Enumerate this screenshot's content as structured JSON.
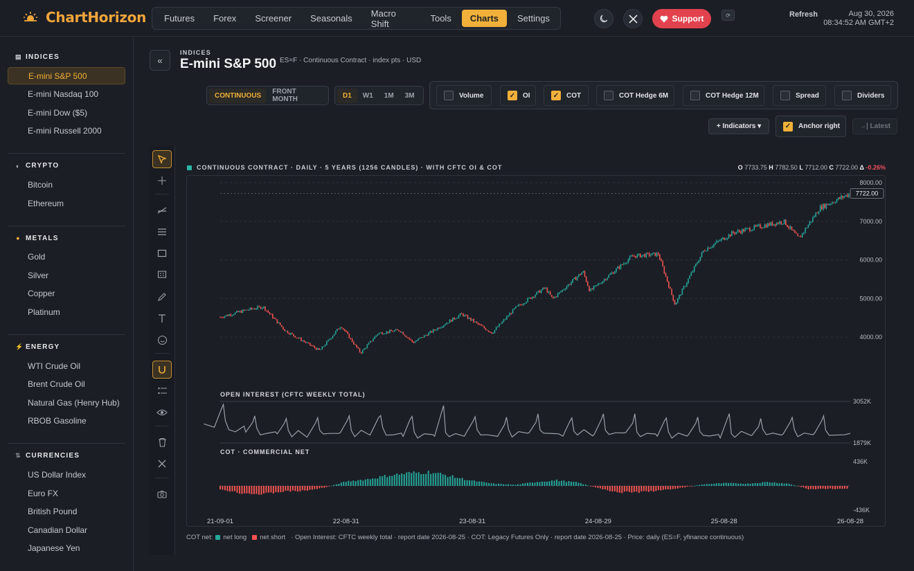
{
  "app": {
    "name": "ChartHorizon"
  },
  "nav": {
    "items": [
      "Futures",
      "Forex",
      "Screener",
      "Seasonals",
      "Macro Shift",
      "Tools",
      "Charts",
      "Settings"
    ],
    "active": "Charts"
  },
  "topbar": {
    "support_label": "Support",
    "refresh_label": "Refresh",
    "date": "Aug 30, 2026",
    "time": "08:34:52 AM GMT+2",
    "mini_glyph": "⟳"
  },
  "sidebar": {
    "sections": [
      {
        "title": "INDICES",
        "icon": "chart-icon",
        "items": [
          "E-mini S&P 500",
          "E-mini Nasdaq 100",
          "E-mini Dow ($5)",
          "E-mini Russell 2000"
        ],
        "active": "E-mini S&P 500"
      },
      {
        "title": "CRYPTO",
        "icon": "crypto-icon",
        "items": [
          "Bitcoin",
          "Ethereum"
        ]
      },
      {
        "title": "METALS",
        "icon": "metals-icon",
        "items": [
          "Gold",
          "Silver",
          "Copper",
          "Platinum"
        ]
      },
      {
        "title": "ENERGY",
        "icon": "energy-icon",
        "items": [
          "WTI Crude Oil",
          "Brent Crude Oil",
          "Natural Gas (Henry Hub)",
          "RBOB Gasoline"
        ]
      },
      {
        "title": "CURRENCIES",
        "icon": "currencies-icon",
        "items": [
          "US Dollar Index",
          "Euro FX",
          "British Pound",
          "Canadian Dollar",
          "Japanese Yen"
        ]
      }
    ]
  },
  "header": {
    "breadcrumb": "INDICES",
    "title": "E-mini S&P 500",
    "meta": "ES=F · Continuous Contract · index pts · USD"
  },
  "controls": {
    "contract_modes": [
      "CONTINUOUS",
      "FRONT MONTH"
    ],
    "contract_active": "CONTINUOUS",
    "timeframes": [
      "D1",
      "W1",
      "1M",
      "3M"
    ],
    "timeframe_active": "D1",
    "toggles": [
      {
        "label": "Volume",
        "checked": false
      },
      {
        "label": "OI",
        "checked": true
      },
      {
        "label": "COT",
        "checked": true
      },
      {
        "label": "COT Hedge 6M",
        "checked": false
      },
      {
        "label": "COT Hedge 12M",
        "checked": false
      },
      {
        "label": "Spread",
        "checked": false
      },
      {
        "label": "Dividers",
        "checked": false
      }
    ],
    "indicators_label": "+ Indicators ▾",
    "anchor_label": "Anchor right",
    "anchor_checked": true,
    "latest_label": "→| Latest"
  },
  "tools": [
    "cursor-tool",
    "crosshair-tool",
    "trendline-tool",
    "fib-tool",
    "rectangle-tool",
    "pattern-tool",
    "brush-tool",
    "text-tool",
    "emoji-tool",
    "magnet-tool",
    "measure-tool",
    "eye-tool",
    "trash-tool",
    "close-tool",
    "camera-tool"
  ],
  "chart_caption": "CONTINUOUS CONTRACT · DAILY · 5 YEARS (1256 CANDLES) · WITH CFTC OI & COT",
  "ohlc": {
    "o": "7733.75",
    "h": "7782.50",
    "l": "7712.00",
    "c": "7722.00",
    "change": "-0.26%"
  },
  "colors": {
    "up": "#26a69a",
    "down": "#ef5350",
    "accent": "#f0b03a",
    "oi_line": "#9aa0a8"
  },
  "chart_data": [
    {
      "type": "line",
      "title": "CONTINUOUS CONTRACT · DAILY · 5 YEARS (1256 CANDLES) · WITH CFTC OI & COT",
      "x": [
        "21-09-01",
        "21-11-15",
        "22-01-03",
        "22-03-08",
        "22-06-16",
        "22-08-16",
        "22-10-12",
        "22-12-01",
        "23-02-02",
        "23-03-13",
        "23-07-31",
        "23-10-27",
        "24-01-02",
        "24-03-28",
        "24-04-19",
        "24-07-16",
        "24-08-05",
        "24-12-06",
        "25-02-19",
        "25-04-08",
        "25-06-30",
        "25-09-22",
        "25-12-01",
        "26-02-17",
        "26-04-01",
        "26-06-01",
        "26-08-28"
      ],
      "series": [
        {
          "values": [
            4520,
            4700,
            4790,
            4170,
            3650,
            4300,
            3590,
            4100,
            4180,
            3860,
            4600,
            4110,
            4750,
            5280,
            4990,
            5700,
            5190,
            6100,
            6150,
            4850,
            6250,
            6700,
            6850,
            7000,
            6550,
            7350,
            7722
          ]
        }
      ],
      "ylim": [
        3500,
        8000
      ],
      "yticks": [
        4000,
        5000,
        6000,
        7000,
        8000
      ],
      "xticks": [
        "21-09-01",
        "22-08-31",
        "23-08-31",
        "24-08-29",
        "25-08-28",
        "26-08-28"
      ],
      "last_value": "7722.00"
    },
    {
      "type": "line",
      "title": "OPEN INTEREST (CFTC WEEKLY TOTAL)",
      "ylim": [
        1879,
        3052
      ],
      "ytick_labels": [
        "3052K",
        "1879K"
      ],
      "spike_x": [
        "21-09-10",
        "21-12-10",
        "22-03-11",
        "22-06-10",
        "22-09-09",
        "22-12-09",
        "23-03-10",
        "23-06-09",
        "23-09-08",
        "23-12-08",
        "24-03-08",
        "24-06-14",
        "24-09-13",
        "24-12-13",
        "25-03-14",
        "25-06-13",
        "25-09-12",
        "25-12-12",
        "26-03-13",
        "26-06-12"
      ],
      "spike_values": [
        3000,
        2600,
        2550,
        2600,
        2650,
        2700,
        2650,
        2900,
        2600,
        2550,
        2650,
        2600,
        2700,
        2650,
        2600,
        2550,
        2650,
        2550,
        2600,
        2700
      ],
      "base_values": [
        2350,
        2150,
        2100,
        2150,
        2100,
        2150,
        2100,
        2050,
        2100,
        2100,
        2150,
        2100,
        2150,
        2100,
        2050,
        2100,
        2050,
        2100,
        2150,
        2100
      ],
      "last_value": 2100
    },
    {
      "type": "bar",
      "title": "COT · COMMERCIAL NET",
      "ylim": [
        -436,
        436
      ],
      "ytick_labels": [
        "436K",
        "-436K"
      ],
      "x": [
        "21-09-01",
        "21-11-01",
        "22-01-03",
        "22-03-01",
        "22-05-02",
        "22-07-01",
        "22-09-01",
        "22-11-01",
        "23-01-03",
        "23-03-01",
        "23-05-01",
        "23-07-03",
        "23-09-01",
        "23-11-01",
        "24-01-02",
        "24-03-01",
        "24-05-01",
        "24-07-01",
        "24-09-03",
        "24-11-01",
        "25-01-02",
        "25-03-03",
        "25-05-01",
        "25-07-01",
        "25-09-02",
        "25-11-03",
        "26-01-02",
        "26-03-02",
        "26-05-01",
        "26-07-01",
        "26-08-25"
      ],
      "values": [
        -60,
        -130,
        -150,
        -100,
        -90,
        -30,
        80,
        120,
        190,
        230,
        250,
        170,
        90,
        40,
        20,
        70,
        100,
        60,
        -50,
        -120,
        -110,
        -80,
        -30,
        30,
        50,
        40,
        70,
        40,
        -60,
        -50,
        -60
      ]
    }
  ],
  "footer": {
    "prefix": "COT net:",
    "net_long": "net long",
    "net_short": "net short",
    "note": "· Open Interest: CFTC weekly total · report date 2026-08-25 · COT: Legacy Futures Only · report date 2026-08-25 · Price: daily (ES=F, yfinance continuous)"
  }
}
